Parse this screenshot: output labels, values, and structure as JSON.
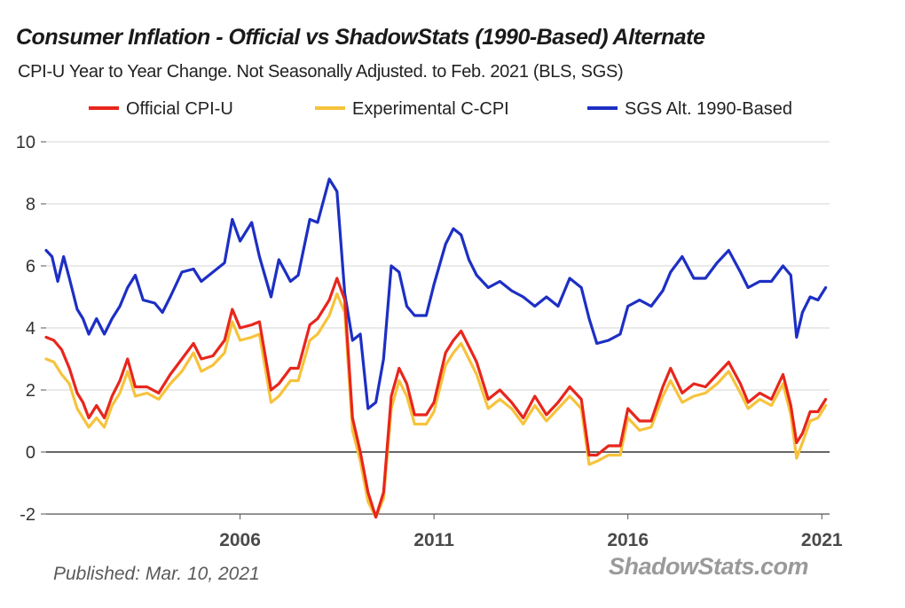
{
  "header": {
    "title": "Consumer Inflation - Official vs ShadowStats (1990-Based) Alternate",
    "subtitle": "CPI-U Year to Year Change. Not Seasonally Adjusted. to Feb. 2021  (BLS, SGS)"
  },
  "legend": [
    {
      "label": "Official CPI-U",
      "color": "#e8261c"
    },
    {
      "label": "Experimental C-CPI",
      "color": "#f6c33c"
    },
    {
      "label": "SGS  Alt. 1990-Based",
      "color": "#1d2fc4"
    }
  ],
  "footer": {
    "published": "Published: Mar. 10, 2021",
    "brand": "ShadowStats.com"
  },
  "chart_data": {
    "type": "line",
    "title": "Consumer Inflation - Official vs ShadowStats (1990-Based) Alternate",
    "subtitle": "CPI-U Year to Year Change. Not Seasonally Adjusted. to Feb. 2021  (BLS, SGS)",
    "xlabel": "",
    "ylabel": "",
    "xlim": [
      2001.0,
      2021.2
    ],
    "ylim": [
      -2,
      10
    ],
    "y_ticks": [
      -2,
      0,
      2,
      4,
      6,
      8,
      10
    ],
    "y_tick_labels": [
      "-2",
      "0",
      "2",
      "4",
      "6",
      "8",
      "10"
    ],
    "x_ticks": [
      2006,
      2011,
      2016,
      2021
    ],
    "x_tick_labels": [
      "2006",
      "2011",
      "2016",
      "2021"
    ],
    "grid": "horizontal",
    "legend_position": "top",
    "series": [
      {
        "name": "Official CPI-U",
        "color": "#e8261c",
        "x": [
          2001.0,
          2001.2,
          2001.4,
          2001.6,
          2001.8,
          2001.95,
          2002.1,
          2002.3,
          2002.5,
          2002.7,
          2002.9,
          2003.1,
          2003.3,
          2003.6,
          2003.9,
          2004.2,
          2004.5,
          2004.8,
          2005.0,
          2005.3,
          2005.6,
          2005.8,
          2006.0,
          2006.3,
          2006.5,
          2006.8,
          2007.0,
          2007.3,
          2007.5,
          2007.8,
          2008.0,
          2008.3,
          2008.5,
          2008.7,
          2008.9,
          2009.1,
          2009.3,
          2009.5,
          2009.7,
          2009.9,
          2010.1,
          2010.3,
          2010.5,
          2010.8,
          2011.0,
          2011.3,
          2011.5,
          2011.7,
          2011.9,
          2012.1,
          2012.4,
          2012.7,
          2013.0,
          2013.3,
          2013.6,
          2013.9,
          2014.2,
          2014.5,
          2014.8,
          2015.0,
          2015.2,
          2015.5,
          2015.8,
          2016.0,
          2016.3,
          2016.6,
          2016.9,
          2017.1,
          2017.4,
          2017.7,
          2018.0,
          2018.3,
          2018.6,
          2018.9,
          2019.1,
          2019.4,
          2019.7,
          2020.0,
          2020.2,
          2020.35,
          2020.5,
          2020.7,
          2020.9,
          2021.1
        ],
        "y": [
          3.7,
          3.6,
          3.3,
          2.7,
          1.9,
          1.6,
          1.1,
          1.5,
          1.1,
          1.8,
          2.3,
          3.0,
          2.1,
          2.1,
          1.9,
          2.5,
          3.0,
          3.5,
          3.0,
          3.1,
          3.6,
          4.6,
          4.0,
          4.1,
          4.2,
          2.0,
          2.2,
          2.7,
          2.7,
          4.1,
          4.3,
          4.9,
          5.6,
          4.9,
          1.1,
          0.0,
          -1.3,
          -2.1,
          -1.3,
          1.8,
          2.7,
          2.2,
          1.2,
          1.2,
          1.6,
          3.2,
          3.6,
          3.9,
          3.4,
          2.9,
          1.7,
          2.0,
          1.6,
          1.1,
          1.8,
          1.2,
          1.6,
          2.1,
          1.7,
          -0.1,
          -0.1,
          0.2,
          0.2,
          1.4,
          1.0,
          1.0,
          2.1,
          2.7,
          1.9,
          2.2,
          2.1,
          2.5,
          2.9,
          2.2,
          1.6,
          1.9,
          1.7,
          2.5,
          1.5,
          0.3,
          0.6,
          1.3,
          1.3,
          1.7
        ]
      },
      {
        "name": "Experimental C-CPI",
        "color": "#f6c33c",
        "x": [
          2001.0,
          2001.2,
          2001.4,
          2001.6,
          2001.8,
          2001.95,
          2002.1,
          2002.3,
          2002.5,
          2002.7,
          2002.9,
          2003.1,
          2003.3,
          2003.6,
          2003.9,
          2004.2,
          2004.5,
          2004.8,
          2005.0,
          2005.3,
          2005.6,
          2005.8,
          2006.0,
          2006.3,
          2006.5,
          2006.8,
          2007.0,
          2007.3,
          2007.5,
          2007.8,
          2008.0,
          2008.3,
          2008.5,
          2008.7,
          2008.9,
          2009.1,
          2009.3,
          2009.5,
          2009.7,
          2009.9,
          2010.1,
          2010.3,
          2010.5,
          2010.8,
          2011.0,
          2011.3,
          2011.5,
          2011.7,
          2011.9,
          2012.1,
          2012.4,
          2012.7,
          2013.0,
          2013.3,
          2013.6,
          2013.9,
          2014.2,
          2014.5,
          2014.8,
          2015.0,
          2015.2,
          2015.5,
          2015.8,
          2016.0,
          2016.3,
          2016.6,
          2016.9,
          2017.1,
          2017.4,
          2017.7,
          2018.0,
          2018.3,
          2018.6,
          2018.9,
          2019.1,
          2019.4,
          2019.7,
          2020.0,
          2020.2,
          2020.35,
          2020.5,
          2020.7,
          2020.9,
          2021.1
        ],
        "y": [
          3.0,
          2.9,
          2.5,
          2.2,
          1.4,
          1.1,
          0.8,
          1.1,
          0.8,
          1.5,
          1.9,
          2.6,
          1.8,
          1.9,
          1.7,
          2.2,
          2.6,
          3.2,
          2.6,
          2.8,
          3.2,
          4.2,
          3.6,
          3.7,
          3.8,
          1.6,
          1.8,
          2.3,
          2.3,
          3.6,
          3.8,
          4.4,
          5.1,
          4.5,
          0.7,
          -0.3,
          -1.6,
          -2.1,
          -1.5,
          1.4,
          2.3,
          1.8,
          0.9,
          0.9,
          1.3,
          2.8,
          3.2,
          3.5,
          3.0,
          2.5,
          1.4,
          1.7,
          1.4,
          0.9,
          1.5,
          1.0,
          1.4,
          1.8,
          1.4,
          -0.4,
          -0.3,
          -0.1,
          -0.1,
          1.1,
          0.7,
          0.8,
          1.8,
          2.3,
          1.6,
          1.8,
          1.9,
          2.2,
          2.6,
          1.9,
          1.4,
          1.7,
          1.5,
          2.2,
          1.2,
          -0.2,
          0.3,
          1.0,
          1.1,
          1.5
        ]
      },
      {
        "name": "SGS  Alt. 1990-Based",
        "color": "#1d2fc4",
        "x": [
          2001.0,
          2001.15,
          2001.3,
          2001.45,
          2001.6,
          2001.8,
          2001.95,
          2002.1,
          2002.3,
          2002.5,
          2002.7,
          2002.9,
          2003.1,
          2003.3,
          2003.5,
          2003.8,
          2004.0,
          2004.2,
          2004.5,
          2004.8,
          2005.0,
          2005.3,
          2005.6,
          2005.8,
          2006.0,
          2006.3,
          2006.5,
          2006.8,
          2007.0,
          2007.3,
          2007.5,
          2007.8,
          2008.0,
          2008.3,
          2008.5,
          2008.7,
          2008.9,
          2009.1,
          2009.3,
          2009.5,
          2009.7,
          2009.9,
          2010.1,
          2010.3,
          2010.5,
          2010.8,
          2011.0,
          2011.3,
          2011.5,
          2011.7,
          2011.9,
          2012.1,
          2012.4,
          2012.7,
          2013.0,
          2013.3,
          2013.6,
          2013.9,
          2014.2,
          2014.5,
          2014.8,
          2015.0,
          2015.2,
          2015.5,
          2015.8,
          2016.0,
          2016.3,
          2016.6,
          2016.9,
          2017.1,
          2017.4,
          2017.7,
          2018.0,
          2018.3,
          2018.6,
          2018.9,
          2019.1,
          2019.4,
          2019.7,
          2020.0,
          2020.2,
          2020.35,
          2020.5,
          2020.7,
          2020.9,
          2021.1
        ],
        "y": [
          6.5,
          6.3,
          5.5,
          6.3,
          5.6,
          4.6,
          4.3,
          3.8,
          4.3,
          3.8,
          4.3,
          4.7,
          5.3,
          5.7,
          4.9,
          4.8,
          4.5,
          5.0,
          5.8,
          5.9,
          5.5,
          5.8,
          6.1,
          7.5,
          6.8,
          7.4,
          6.3,
          5.0,
          6.2,
          5.5,
          5.7,
          7.5,
          7.4,
          8.8,
          8.4,
          5.1,
          3.6,
          3.8,
          1.4,
          1.6,
          3.0,
          6.0,
          5.8,
          4.7,
          4.4,
          4.4,
          5.4,
          6.7,
          7.2,
          7.0,
          6.2,
          5.7,
          5.3,
          5.5,
          5.2,
          5.0,
          4.7,
          5.0,
          4.7,
          5.6,
          5.3,
          4.3,
          3.5,
          3.6,
          3.8,
          4.7,
          4.9,
          4.7,
          5.2,
          5.8,
          6.3,
          5.6,
          5.6,
          6.1,
          6.5,
          5.8,
          5.3,
          5.5,
          5.5,
          6.0,
          5.7,
          3.7,
          4.5,
          5.0,
          4.9,
          5.3
        ]
      }
    ]
  }
}
